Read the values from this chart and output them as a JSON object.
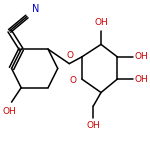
{
  "bg_color": "#ffffff",
  "bond_color": "#000000",
  "o_color": "#cc0000",
  "n_color": "#0000cc",
  "line_width": 1.1,
  "font_size": 6.5
}
